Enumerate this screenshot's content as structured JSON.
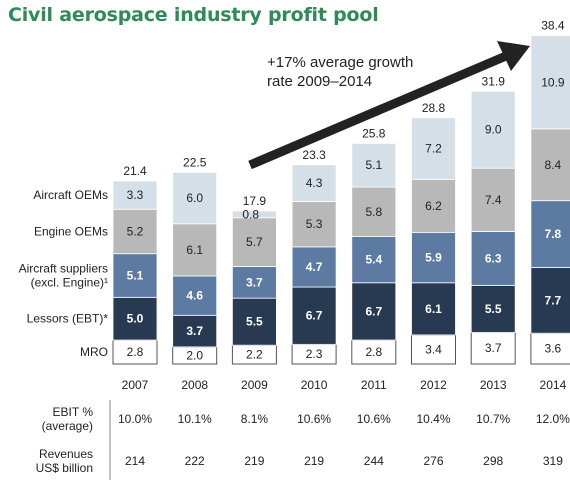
{
  "title": "Civil aerospace industry profit pool",
  "chart_data": {
    "type": "bar",
    "stacked": true,
    "categories": [
      "2007",
      "2008",
      "2009",
      "2010",
      "2011",
      "2012",
      "2013",
      "2014"
    ],
    "series": [
      {
        "name": "MRO",
        "values": [
          2.8,
          2.0,
          2.2,
          2.3,
          2.8,
          3.4,
          3.7,
          3.6
        ],
        "color": "#ffffff",
        "text_color": "#222222"
      },
      {
        "name": "Lessors  (EBT)*",
        "values": [
          5.0,
          3.7,
          5.5,
          6.7,
          6.7,
          6.1,
          5.5,
          7.7
        ],
        "color": "#273a52",
        "text_color": "#ffffff"
      },
      {
        "name": "Aircraft suppliers (excl. Engine)¹",
        "name_lines": [
          "Aircraft suppliers",
          "(excl. Engine)¹"
        ],
        "values": [
          5.1,
          4.6,
          3.7,
          4.7,
          5.4,
          5.9,
          6.3,
          7.8
        ],
        "color": "#5d7aa3",
        "text_color": "#ffffff"
      },
      {
        "name": "Engine OEMs",
        "values": [
          5.2,
          6.1,
          5.7,
          5.3,
          5.8,
          6.2,
          7.4,
          8.4
        ],
        "color": "#b8b8b8",
        "text_color": "#222222"
      },
      {
        "name": "Aircraft OEMs",
        "values": [
          3.3,
          6.0,
          0.8,
          4.3,
          5.1,
          7.2,
          9.0,
          10.9
        ],
        "color": "#d5dfe7",
        "text_color": "#222222"
      }
    ],
    "totals": [
      "21.4",
      "22.5",
      "17.9",
      "23.3",
      "25.8",
      "28.8",
      "31.9",
      "38.4"
    ],
    "annotation": [
      "+17% average growth",
      "rate 2009–2014"
    ],
    "table": [
      {
        "label_lines": [
          "EBIT %",
          "(average)"
        ],
        "values": [
          "10.0%",
          "10.1%",
          "8.1%",
          "10.6%",
          "10.6%",
          "10.4%",
          "10.7%",
          "12.0%"
        ]
      },
      {
        "label_lines": [
          "Revenues",
          "US$ billion"
        ],
        "values": [
          "214",
          "222",
          "219",
          "219",
          "244",
          "276",
          "298",
          "319"
        ]
      }
    ]
  }
}
